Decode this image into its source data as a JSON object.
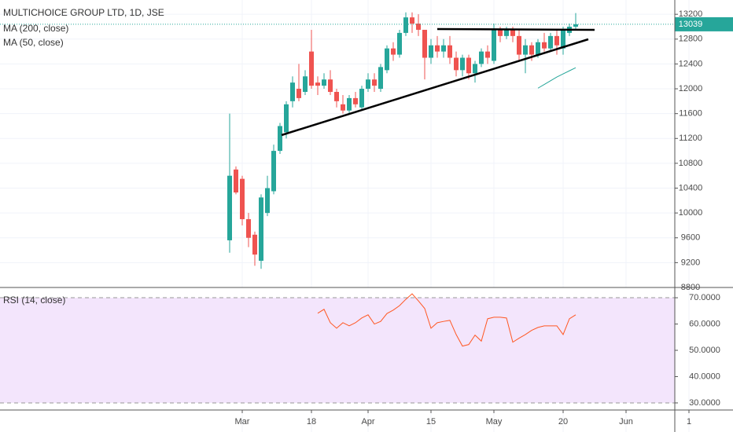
{
  "chart_data": [
    {
      "type": "candlestick",
      "title": "MULTICHOICE GROUP LTD, 1D, JSE",
      "categories": [
        null,
        null,
        "Mar",
        null,
        null,
        null,
        null,
        null,
        null,
        null,
        null,
        null,
        null,
        "18",
        null,
        null,
        null,
        null,
        null,
        null,
        null,
        null,
        "Apr",
        null,
        null,
        null,
        null,
        null,
        null,
        null,
        null,
        null,
        "15",
        null,
        null,
        null,
        null,
        null,
        null,
        null,
        null,
        null,
        "May",
        null,
        null,
        null,
        null,
        null,
        null,
        null,
        null,
        null,
        null,
        "20",
        null,
        null,
        null,
        null,
        null,
        null,
        null,
        null,
        null,
        "Jun",
        null,
        null,
        null,
        null,
        null,
        null,
        null,
        null,
        null,
        "1"
      ],
      "open": [
        9560,
        10700,
        10550,
        9900,
        9650,
        9230,
        10000,
        10350,
        11000,
        11300,
        11800,
        12000,
        11950,
        12600,
        12100,
        12050,
        12150,
        11950,
        11750,
        11650,
        11850,
        11700,
        12000,
        12150,
        12000,
        12300,
        12650,
        12550,
        12900,
        13150,
        13050,
        12950,
        12500,
        12700,
        12600,
        12700,
        12500,
        12300,
        12500,
        12250,
        12400,
        12600,
        12450,
        12950,
        12850,
        12950,
        12850,
        12550,
        12700,
        12550,
        12750,
        12650,
        12850,
        12650,
        12900,
        13000,
        null,
        null,
        null,
        null,
        null,
        null,
        null,
        null,
        null,
        null,
        null,
        null,
        null,
        null,
        null,
        null,
        null,
        null
      ],
      "high": [
        11600,
        10750,
        10600,
        10000,
        9700,
        10300,
        10600,
        11100,
        11450,
        11800,
        12200,
        12400,
        12300,
        12950,
        12200,
        12250,
        12300,
        12000,
        11900,
        11900,
        11950,
        12050,
        12250,
        12250,
        12400,
        12700,
        12750,
        12950,
        13230,
        13230,
        13200,
        12950,
        12800,
        12850,
        12800,
        12850,
        12600,
        12550,
        12550,
        12450,
        12650,
        12700,
        13050,
        13000,
        13000,
        13000,
        12950,
        12800,
        12750,
        12800,
        12900,
        12900,
        12950,
        13000,
        13050,
        13220,
        null,
        null,
        null,
        null,
        null,
        null,
        null,
        null,
        null,
        null,
        null,
        null,
        null,
        null,
        null,
        null,
        null,
        null
      ],
      "low": [
        9360,
        10300,
        9800,
        9450,
        9150,
        9100,
        9950,
        10300,
        10950,
        11200,
        11700,
        11800,
        11900,
        12000,
        11900,
        12000,
        11900,
        11700,
        11600,
        11600,
        11700,
        11650,
        11950,
        11950,
        11950,
        12250,
        12450,
        12500,
        12850,
        12900,
        12850,
        12150,
        12400,
        12500,
        12500,
        12400,
        12200,
        12200,
        12150,
        12100,
        12350,
        12400,
        12400,
        12750,
        12800,
        12750,
        12450,
        12250,
        12450,
        12500,
        12600,
        12600,
        12550,
        12550,
        12850,
        12950,
        null,
        null,
        null,
        null,
        null,
        null,
        null,
        null,
        null,
        null,
        null,
        null,
        null,
        null,
        null,
        null,
        null,
        null
      ],
      "close": [
        10600,
        10330,
        9900,
        9600,
        9330,
        10250,
        10400,
        11000,
        11400,
        11750,
        12100,
        11850,
        12200,
        12050,
        12050,
        12150,
        11950,
        11800,
        11650,
        11850,
        11750,
        12000,
        12150,
        12050,
        12350,
        12650,
        12550,
        12900,
        13150,
        13050,
        12950,
        12500,
        12700,
        12600,
        12700,
        12500,
        12300,
        12500,
        12250,
        12400,
        12600,
        12500,
        12950,
        12850,
        12950,
        12850,
        12550,
        12700,
        12550,
        12750,
        12650,
        12850,
        12700,
        12950,
        13000,
        13039,
        null,
        null,
        null,
        null,
        null,
        null,
        null,
        null,
        null,
        null,
        null,
        null,
        null,
        null,
        null,
        null,
        null,
        null
      ],
      "up_color": "#26a69a",
      "down_color": "#ef5350",
      "overlays": [
        {
          "name": "MA (200, close)"
        },
        {
          "name": "MA (50, close)",
          "color": "#26a69a",
          "values": [
            null,
            null,
            null,
            null,
            null,
            null,
            null,
            null,
            null,
            null,
            null,
            null,
            null,
            null,
            null,
            null,
            null,
            null,
            null,
            null,
            null,
            null,
            null,
            null,
            null,
            null,
            null,
            null,
            null,
            null,
            null,
            null,
            null,
            null,
            null,
            null,
            null,
            null,
            null,
            null,
            null,
            null,
            null,
            null,
            null,
            null,
            null,
            null,
            null,
            12010,
            12070,
            12130,
            12190,
            12240,
            12290,
            12340,
            null,
            null,
            null,
            null,
            null,
            null,
            null,
            null,
            null,
            null,
            null,
            null,
            null,
            null,
            null,
            null,
            null,
            null
          ]
        }
      ],
      "last_price": 13039,
      "ylim": [
        8800,
        13430
      ],
      "yticks": [
        8800,
        9200,
        9600,
        10000,
        10400,
        10800,
        11200,
        11600,
        12000,
        12400,
        12800,
        13200
      ],
      "grid": true
    },
    {
      "type": "line",
      "title": "RSI (14, close)",
      "color": "#ff5722",
      "values": [
        null,
        null,
        null,
        null,
        null,
        null,
        null,
        null,
        null,
        null,
        null,
        null,
        null,
        null,
        64.1,
        65.6,
        60.5,
        58.4,
        60.5,
        59.3,
        60.5,
        62.3,
        63.5,
        60,
        61,
        64,
        65.3,
        67,
        69.4,
        71.5,
        68.8,
        65.9,
        58.4,
        60.5,
        61,
        61.4,
        56,
        51.6,
        52.2,
        55.8,
        53.5,
        62,
        62.6,
        62.6,
        62.3,
        53.1,
        54.6,
        56,
        57.6,
        58.7,
        59.3,
        59.3,
        59.3,
        56,
        62,
        63.5,
        null,
        null,
        null,
        null,
        null,
        null,
        null,
        null,
        null,
        null,
        null,
        null,
        null,
        null,
        null,
        null,
        null,
        null
      ],
      "band": [
        30,
        70
      ],
      "band_color": "#f3e5fc",
      "ylim": [
        27.3,
        73.9
      ],
      "yticks": [
        {
          "value": 30,
          "label": "30.0000"
        },
        {
          "value": 40,
          "label": "40.0000"
        },
        {
          "value": 50,
          "label": "50.0000"
        },
        {
          "value": 60,
          "label": "60.0000"
        },
        {
          "value": 70,
          "label": "70.0000"
        }
      ]
    }
  ]
}
